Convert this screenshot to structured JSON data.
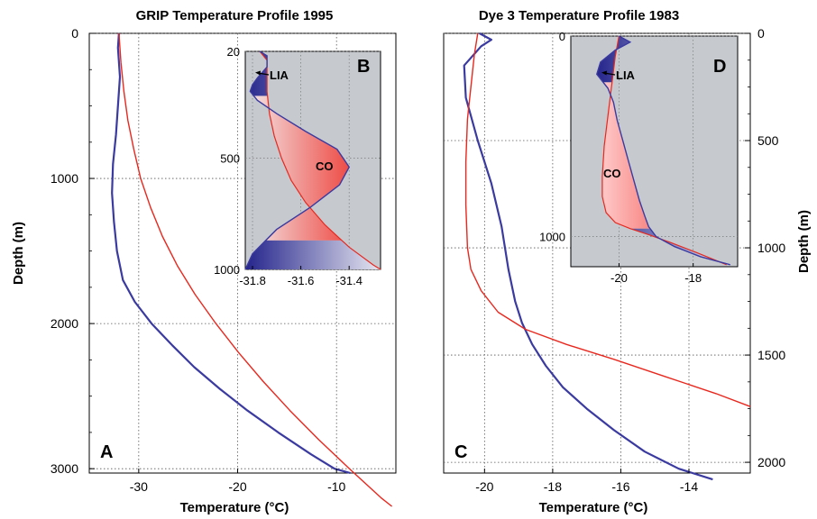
{
  "chart_data": [
    {
      "panel": "A",
      "type": "line",
      "title": "GRIP Temperature Profile 1995",
      "xlabel": "Temperature (°C)",
      "ylabel": "Depth (m)",
      "xlim": [
        -35,
        -4
      ],
      "ylim": [
        3030,
        0
      ],
      "xticks": [
        "-30",
        "-20",
        "-10"
      ],
      "yticks": [
        "0",
        "1000",
        "2000",
        "3000"
      ],
      "grid": "dotted",
      "colors": {
        "blue": "#3a3aa0",
        "red": "#e8281e"
      },
      "series": [
        {
          "color": "blue",
          "x": [
            -32,
            -32.1,
            -31.9,
            -32.1,
            -32.3,
            -32.6,
            -32.7,
            -32.5,
            -32.2,
            -31.6,
            -30.4,
            -28.7,
            -26.6,
            -24.4,
            -21.8,
            -19,
            -15.9,
            -12.6,
            -10.2,
            -8.6
          ],
          "y": [
            0,
            100,
            300,
            500,
            700,
            900,
            1100,
            1300,
            1500,
            1700,
            1850,
            2000,
            2150,
            2300,
            2450,
            2600,
            2750,
            2900,
            3000,
            3030
          ]
        },
        {
          "color": "red",
          "x": [
            -32,
            -31.8,
            -31.5,
            -31.1,
            -30.5,
            -29.8,
            -28.8,
            -27.6,
            -26.1,
            -24.3,
            -22.2,
            -19.9,
            -17.4,
            -14.7,
            -11.8,
            -8.7,
            -5.5,
            -4.4
          ],
          "y": [
            0,
            200,
            400,
            600,
            800,
            1000,
            1200,
            1400,
            1600,
            1800,
            2000,
            2200,
            2400,
            2600,
            2800,
            3000,
            3200,
            3260
          ]
        }
      ]
    },
    {
      "panel": "B",
      "type": "area",
      "inset_of": "A",
      "xlim": [
        -31.83,
        -31.27
      ],
      "ylim": [
        1000,
        20
      ],
      "xticks": [
        "-31.8",
        "-31.6",
        "-31.4"
      ],
      "yticks": [
        "20",
        "500",
        "1000"
      ],
      "annotations": [
        "LIA",
        "CO"
      ],
      "series": [
        {
          "color": "blue",
          "x": [
            -31.77,
            -31.74,
            -31.74,
            -31.78,
            -31.8,
            -31.81,
            -31.78,
            -31.7,
            -31.58,
            -31.45,
            -31.4,
            -31.44,
            -31.56,
            -31.7,
            -31.8,
            -31.83
          ],
          "y": [
            20,
            40,
            90,
            140,
            170,
            200,
            240,
            300,
            380,
            460,
            540,
            620,
            720,
            820,
            930,
            1000
          ]
        },
        {
          "color": "red",
          "x": [
            -31.77,
            -31.74,
            -31.74,
            -31.74,
            -31.73,
            -31.71,
            -31.68,
            -31.64,
            -31.58,
            -31.5,
            -31.4,
            -31.3,
            -31.27
          ],
          "y": [
            20,
            60,
            120,
            200,
            300,
            400,
            500,
            600,
            700,
            800,
            900,
            980,
            1000
          ]
        }
      ]
    },
    {
      "panel": "C",
      "type": "line",
      "title": "Dye 3 Temperature Profile 1983",
      "xlabel": "Temperature (°C)",
      "ylabel": "Depth (m)",
      "xlim": [
        -21.2,
        -12.2
      ],
      "ylim": [
        2050,
        0
      ],
      "xticks": [
        "-20",
        "-18",
        "-16",
        "-14"
      ],
      "yticks": [
        "0",
        "500",
        "1000",
        "1500",
        "2000"
      ],
      "grid": "dotted",
      "colors": {
        "blue": "#3a3aa0",
        "red": "#e8281e"
      },
      "series": [
        {
          "color": "blue",
          "x": [
            -20.15,
            -19.8,
            -20.1,
            -20.6,
            -20.55,
            -20.2,
            -19.8,
            -19.5,
            -19.3,
            -19.1,
            -18.9,
            -18.6,
            -18.2,
            -17.7,
            -17,
            -16.2,
            -15.3,
            -14.3,
            -13.3
          ],
          "y": [
            0,
            30,
            60,
            150,
            300,
            500,
            700,
            900,
            1100,
            1250,
            1350,
            1450,
            1550,
            1650,
            1750,
            1850,
            1950,
            2030,
            2080
          ]
        },
        {
          "color": "red",
          "x": [
            -20.2,
            -20.3,
            -20.4,
            -20.5,
            -20.55,
            -20.55,
            -20.5,
            -20.4,
            -20.1,
            -19.6,
            -18.8,
            -17.6,
            -16.2,
            -14.7,
            -13.2,
            -12.2
          ],
          "y": [
            0,
            100,
            250,
            400,
            600,
            800,
            1000,
            1100,
            1200,
            1300,
            1380,
            1450,
            1520,
            1600,
            1680,
            1740
          ]
        }
      ]
    },
    {
      "panel": "D",
      "type": "area",
      "inset_of": "C",
      "xlim": [
        -21.3,
        -16.8
      ],
      "ylim": [
        1150,
        0
      ],
      "xticks": [
        "-20",
        "-18"
      ],
      "yticks": [
        "0",
        "1000"
      ],
      "annotations": [
        "LIA",
        "CO"
      ],
      "series": [
        {
          "color": "blue",
          "x": [
            -20,
            -19.7,
            -20.1,
            -20.5,
            -20.6,
            -20.3,
            -20.15,
            -20.05,
            -19.9,
            -19.75,
            -19.6,
            -19.45,
            -19.3,
            -19.2,
            -19,
            -18.5,
            -17.8,
            -17
          ],
          "y": [
            0,
            30,
            70,
            130,
            190,
            260,
            330,
            420,
            520,
            620,
            720,
            820,
            900,
            950,
            1000,
            1050,
            1100,
            1140
          ]
        },
        {
          "color": "red",
          "x": [
            -20,
            -20.1,
            -20.2,
            -20.3,
            -20.4,
            -20.45,
            -20.45,
            -20.35,
            -20.1,
            -19.7,
            -19.2,
            -18.6,
            -17.9,
            -17.1
          ],
          "y": [
            0,
            100,
            250,
            400,
            550,
            700,
            800,
            880,
            930,
            960,
            990,
            1030,
            1080,
            1140
          ]
        }
      ]
    }
  ],
  "panel_labels": {
    "a": "A",
    "b": "B",
    "c": "C",
    "d": "D"
  }
}
